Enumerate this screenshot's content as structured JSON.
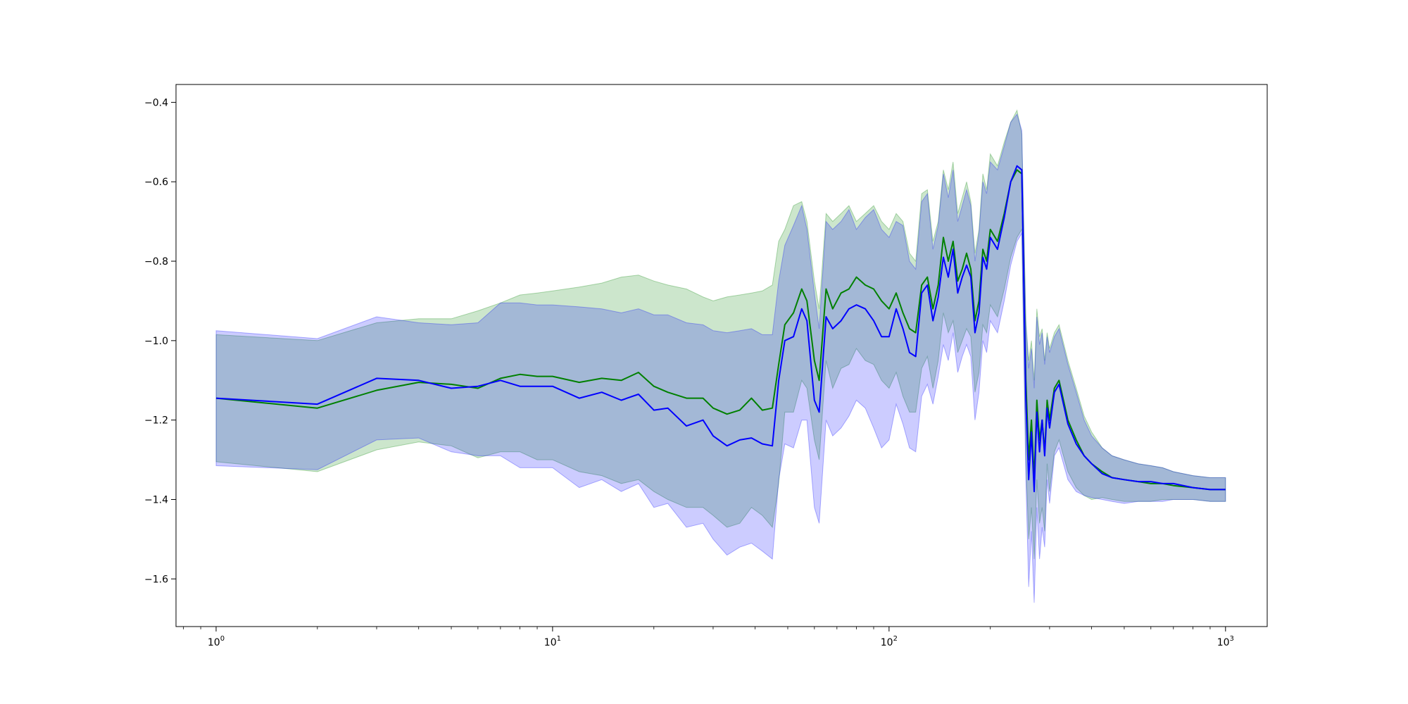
{
  "chart_data": {
    "type": "line",
    "title": "",
    "xlabel": "",
    "ylabel": "",
    "xscale": "log",
    "xlim": [
      0.76,
      1330
    ],
    "ylim": [
      -1.72,
      -0.355
    ],
    "grid": false,
    "legend": "none",
    "x_ticks": [
      {
        "base": "10",
        "exp": "0",
        "value": 1
      },
      {
        "base": "10",
        "exp": "1",
        "value": 10
      },
      {
        "base": "10",
        "exp": "2",
        "value": 100
      },
      {
        "base": "10",
        "exp": "3",
        "value": 1000
      }
    ],
    "y_ticks": [
      {
        "label": "−0.4",
        "value": -0.4
      },
      {
        "label": "−0.6",
        "value": -0.6
      },
      {
        "label": "−0.8",
        "value": -0.8
      },
      {
        "label": "−1.0",
        "value": -1.0
      },
      {
        "label": "−1.2",
        "value": -1.2
      },
      {
        "label": "−1.4",
        "value": -1.4
      },
      {
        "label": "−1.6",
        "value": -1.6
      }
    ],
    "series": [
      {
        "color": "#008000",
        "band_color": "#008000",
        "band_opacity": 0.2,
        "x": [
          1,
          2,
          3,
          4,
          5,
          6,
          7,
          8,
          9,
          10,
          12,
          14,
          16,
          18,
          20,
          22,
          25,
          28,
          30,
          33,
          36,
          39,
          42,
          45,
          47,
          49,
          52,
          55,
          57,
          60,
          62,
          65,
          68,
          72,
          76,
          80,
          85,
          90,
          95,
          100,
          105,
          110,
          115,
          120,
          125,
          130,
          135,
          140,
          145,
          150,
          155,
          160,
          165,
          170,
          175,
          180,
          185,
          190,
          195,
          200,
          210,
          220,
          230,
          240,
          248,
          255,
          260,
          265,
          270,
          275,
          280,
          285,
          290,
          295,
          300,
          310,
          320,
          340,
          360,
          380,
          400,
          430,
          460,
          500,
          550,
          600,
          650,
          700,
          800,
          900,
          1000
        ],
        "y": [
          -1.145,
          -1.17,
          -1.125,
          -1.105,
          -1.11,
          -1.12,
          -1.095,
          -1.085,
          -1.09,
          -1.09,
          -1.105,
          -1.095,
          -1.1,
          -1.08,
          -1.115,
          -1.13,
          -1.145,
          -1.145,
          -1.17,
          -1.185,
          -1.175,
          -1.145,
          -1.175,
          -1.17,
          -1.06,
          -0.96,
          -0.93,
          -0.87,
          -0.9,
          -1.05,
          -1.1,
          -0.87,
          -0.92,
          -0.88,
          -0.87,
          -0.84,
          -0.86,
          -0.87,
          -0.9,
          -0.92,
          -0.88,
          -0.93,
          -0.97,
          -0.98,
          -0.86,
          -0.84,
          -0.92,
          -0.86,
          -0.74,
          -0.8,
          -0.75,
          -0.85,
          -0.82,
          -0.78,
          -0.82,
          -0.95,
          -0.9,
          -0.77,
          -0.8,
          -0.72,
          -0.75,
          -0.68,
          -0.6,
          -0.57,
          -0.58,
          -1.1,
          -1.3,
          -1.2,
          -1.35,
          -1.15,
          -1.25,
          -1.2,
          -1.28,
          -1.15,
          -1.2,
          -1.12,
          -1.1,
          -1.2,
          -1.25,
          -1.29,
          -1.31,
          -1.33,
          -1.345,
          -1.35,
          -1.355,
          -1.36,
          -1.36,
          -1.365,
          -1.37,
          -1.375,
          -1.375
        ],
        "upper": [
          -0.985,
          -1.0,
          -0.955,
          -0.945,
          -0.945,
          -0.925,
          -0.905,
          -0.885,
          -0.88,
          -0.875,
          -0.865,
          -0.855,
          -0.84,
          -0.835,
          -0.85,
          -0.86,
          -0.87,
          -0.89,
          -0.9,
          -0.89,
          -0.885,
          -0.88,
          -0.875,
          -0.86,
          -0.75,
          -0.72,
          -0.66,
          -0.65,
          -0.7,
          -0.85,
          -0.92,
          -0.68,
          -0.7,
          -0.68,
          -0.66,
          -0.7,
          -0.68,
          -0.66,
          -0.7,
          -0.72,
          -0.68,
          -0.7,
          -0.78,
          -0.8,
          -0.63,
          -0.62,
          -0.75,
          -0.7,
          -0.57,
          -0.62,
          -0.55,
          -0.68,
          -0.64,
          -0.6,
          -0.65,
          -0.78,
          -0.72,
          -0.58,
          -0.62,
          -0.53,
          -0.56,
          -0.5,
          -0.45,
          -0.42,
          -0.48,
          -0.95,
          -1.05,
          -1.0,
          -1.1,
          -0.92,
          -0.99,
          -0.97,
          -1.05,
          -0.98,
          -1.02,
          -0.98,
          -0.96,
          -1.05,
          -1.12,
          -1.19,
          -1.23,
          -1.27,
          -1.29,
          -1.3,
          -1.31,
          -1.315,
          -1.32,
          -1.33,
          -1.34,
          -1.345,
          -1.345
        ],
        "lower": [
          -1.305,
          -1.33,
          -1.275,
          -1.255,
          -1.265,
          -1.295,
          -1.28,
          -1.28,
          -1.3,
          -1.3,
          -1.33,
          -1.34,
          -1.36,
          -1.35,
          -1.38,
          -1.4,
          -1.42,
          -1.42,
          -1.44,
          -1.47,
          -1.46,
          -1.42,
          -1.44,
          -1.47,
          -1.36,
          -1.18,
          -1.18,
          -1.1,
          -1.12,
          -1.25,
          -1.3,
          -1.05,
          -1.12,
          -1.07,
          -1.06,
          -1.02,
          -1.05,
          -1.06,
          -1.1,
          -1.12,
          -1.08,
          -1.14,
          -1.18,
          -1.18,
          -1.07,
          -1.04,
          -1.12,
          -1.05,
          -0.93,
          -0.98,
          -0.95,
          -1.03,
          -1.0,
          -0.97,
          -0.99,
          -1.13,
          -1.08,
          -0.96,
          -0.98,
          -0.91,
          -0.94,
          -0.87,
          -0.79,
          -0.74,
          -0.72,
          -1.3,
          -1.5,
          -1.42,
          -1.55,
          -1.35,
          -1.46,
          -1.42,
          -1.48,
          -1.31,
          -1.38,
          -1.28,
          -1.25,
          -1.33,
          -1.37,
          -1.39,
          -1.4,
          -1.395,
          -1.4,
          -1.405,
          -1.405,
          -1.405,
          -1.4,
          -1.4,
          -1.4,
          -1.405,
          -1.405
        ]
      },
      {
        "color": "#0000ff",
        "band_color": "#0000ff",
        "band_opacity": 0.2,
        "x": [
          1,
          2,
          3,
          4,
          5,
          6,
          7,
          8,
          9,
          10,
          12,
          14,
          16,
          18,
          20,
          22,
          25,
          28,
          30,
          33,
          36,
          39,
          42,
          45,
          47,
          49,
          52,
          55,
          57,
          60,
          62,
          65,
          68,
          72,
          76,
          80,
          85,
          90,
          95,
          100,
          105,
          110,
          115,
          120,
          125,
          130,
          135,
          140,
          145,
          150,
          155,
          160,
          165,
          170,
          175,
          180,
          185,
          190,
          195,
          200,
          210,
          220,
          230,
          240,
          248,
          255,
          260,
          265,
          270,
          275,
          280,
          285,
          290,
          295,
          300,
          310,
          320,
          340,
          360,
          380,
          400,
          430,
          460,
          500,
          550,
          600,
          650,
          700,
          800,
          900,
          1000
        ],
        "y": [
          -1.145,
          -1.16,
          -1.095,
          -1.1,
          -1.12,
          -1.115,
          -1.1,
          -1.115,
          -1.115,
          -1.115,
          -1.145,
          -1.13,
          -1.15,
          -1.135,
          -1.175,
          -1.17,
          -1.215,
          -1.2,
          -1.24,
          -1.265,
          -1.25,
          -1.245,
          -1.26,
          -1.265,
          -1.1,
          -1.0,
          -0.99,
          -0.92,
          -0.95,
          -1.15,
          -1.18,
          -0.94,
          -0.97,
          -0.95,
          -0.92,
          -0.91,
          -0.92,
          -0.95,
          -0.99,
          -0.99,
          -0.92,
          -0.97,
          -1.03,
          -1.04,
          -0.88,
          -0.86,
          -0.95,
          -0.89,
          -0.79,
          -0.84,
          -0.77,
          -0.88,
          -0.84,
          -0.81,
          -0.84,
          -0.98,
          -0.93,
          -0.79,
          -0.82,
          -0.74,
          -0.77,
          -0.69,
          -0.6,
          -0.56,
          -0.57,
          -1.15,
          -1.35,
          -1.23,
          -1.38,
          -1.18,
          -1.28,
          -1.2,
          -1.29,
          -1.17,
          -1.22,
          -1.13,
          -1.11,
          -1.21,
          -1.26,
          -1.29,
          -1.31,
          -1.335,
          -1.345,
          -1.35,
          -1.355,
          -1.355,
          -1.36,
          -1.36,
          -1.37,
          -1.375,
          -1.375
        ],
        "upper": [
          -0.975,
          -0.995,
          -0.94,
          -0.955,
          -0.96,
          -0.955,
          -0.905,
          -0.905,
          -0.91,
          -0.91,
          -0.915,
          -0.92,
          -0.93,
          -0.92,
          -0.935,
          -0.935,
          -0.955,
          -0.96,
          -0.975,
          -0.98,
          -0.975,
          -0.97,
          -0.985,
          -0.985,
          -0.85,
          -0.76,
          -0.71,
          -0.66,
          -0.72,
          -0.88,
          -0.97,
          -0.7,
          -0.72,
          -0.7,
          -0.67,
          -0.72,
          -0.69,
          -0.67,
          -0.72,
          -0.74,
          -0.7,
          -0.71,
          -0.8,
          -0.82,
          -0.65,
          -0.63,
          -0.77,
          -0.71,
          -0.58,
          -0.64,
          -0.57,
          -0.7,
          -0.66,
          -0.62,
          -0.66,
          -0.8,
          -0.73,
          -0.6,
          -0.63,
          -0.55,
          -0.57,
          -0.51,
          -0.45,
          -0.43,
          -0.47,
          -0.96,
          -1.07,
          -1.02,
          -1.12,
          -0.94,
          -1.01,
          -0.98,
          -1.06,
          -0.99,
          -1.03,
          -0.99,
          -0.97,
          -1.06,
          -1.13,
          -1.2,
          -1.24,
          -1.27,
          -1.29,
          -1.3,
          -1.31,
          -1.315,
          -1.32,
          -1.33,
          -1.34,
          -1.345,
          -1.345
        ],
        "lower": [
          -1.315,
          -1.325,
          -1.25,
          -1.245,
          -1.28,
          -1.29,
          -1.29,
          -1.32,
          -1.32,
          -1.32,
          -1.37,
          -1.35,
          -1.38,
          -1.36,
          -1.42,
          -1.41,
          -1.47,
          -1.46,
          -1.5,
          -1.54,
          -1.52,
          -1.51,
          -1.53,
          -1.55,
          -1.35,
          -1.26,
          -1.27,
          -1.2,
          -1.2,
          -1.42,
          -1.46,
          -1.2,
          -1.24,
          -1.22,
          -1.19,
          -1.15,
          -1.17,
          -1.22,
          -1.27,
          -1.25,
          -1.16,
          -1.21,
          -1.27,
          -1.28,
          -1.14,
          -1.11,
          -1.16,
          -1.09,
          -1.01,
          -1.05,
          -0.98,
          -1.08,
          -1.04,
          -1.01,
          -1.04,
          -1.2,
          -1.13,
          -1.0,
          -1.03,
          -0.95,
          -0.98,
          -0.9,
          -0.81,
          -0.75,
          -0.73,
          -1.35,
          -1.62,
          -1.48,
          -1.66,
          -1.42,
          -1.55,
          -1.47,
          -1.52,
          -1.35,
          -1.41,
          -1.29,
          -1.27,
          -1.35,
          -1.38,
          -1.39,
          -1.395,
          -1.4,
          -1.405,
          -1.41,
          -1.405,
          -1.405,
          -1.405,
          -1.4,
          -1.4,
          -1.405,
          -1.405
        ]
      }
    ]
  }
}
